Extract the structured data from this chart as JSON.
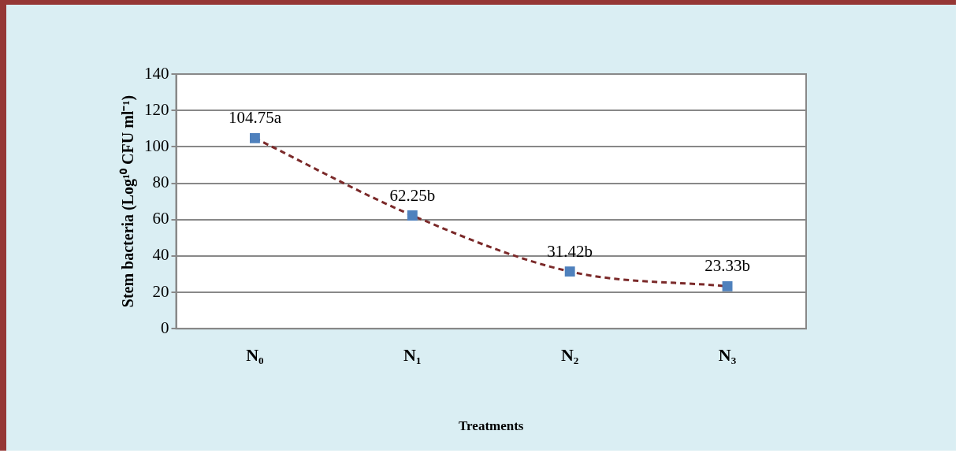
{
  "chart_data": {
    "type": "line",
    "xlabel": "Treatments",
    "ylabel": "Stem bacteria (Log¹⁰ CFU ml⁻¹)",
    "categories": [
      "N₀",
      "N₁",
      "N₂",
      "N₃"
    ],
    "series": [
      {
        "color": "#7b2a2a",
        "values": [
          104.75,
          62.25,
          31.42,
          23.33
        ],
        "value_labels": [
          "104.75a",
          "62.25b",
          "31.42b",
          "23.33b"
        ]
      }
    ],
    "ylim": [
      0,
      140
    ],
    "yticks": [
      0,
      20,
      40,
      60,
      80,
      100,
      120,
      140
    ],
    "grid": "y",
    "legend": false,
    "marker": "square",
    "line_style": "dashed"
  }
}
